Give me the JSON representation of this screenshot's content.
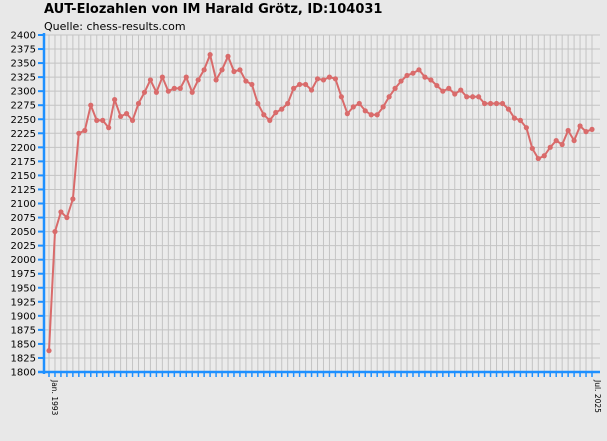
{
  "chart_data": {
    "type": "line",
    "title": "AUT-Elozahlen von IM Harald Grötz, ID:104031",
    "subtitle": "Quelle: chess-results.com",
    "xlabel": "",
    "ylabel": "",
    "ylim": [
      1800,
      2400
    ],
    "y_ticks": [
      1800,
      1825,
      1850,
      1875,
      1900,
      1925,
      1950,
      1975,
      2000,
      2025,
      2050,
      2075,
      2100,
      2125,
      2150,
      2175,
      2200,
      2225,
      2250,
      2275,
      2300,
      2325,
      2350,
      2375,
      2400
    ],
    "grid": true,
    "line_color": "#d96b6b",
    "axis_color": "#1e90ff",
    "x_first_label": "Jan. 1993",
    "x_last_label": "Jul. 2025",
    "series": [
      {
        "values": [
          1838,
          2050,
          2085,
          2075,
          2108,
          2225,
          2230,
          2275,
          2248,
          2248,
          2235,
          2285,
          2255,
          2260,
          2248,
          2278,
          2298,
          2320,
          2298,
          2325,
          2300,
          2305,
          2305,
          2325,
          2298,
          2320,
          2338,
          2365,
          2320,
          2338,
          2362,
          2335,
          2338,
          2318,
          2312,
          2278,
          2258,
          2248,
          2262,
          2268,
          2278,
          2305,
          2312,
          2312,
          2302,
          2322,
          2320,
          2325,
          2322,
          2290,
          2260,
          2272,
          2278,
          2265,
          2258,
          2258,
          2272,
          2290,
          2305,
          2318,
          2328,
          2332,
          2338,
          2325,
          2320,
          2310,
          2300,
          2305,
          2295,
          2302,
          2290,
          2290,
          2290,
          2278,
          2278,
          2278,
          2278,
          2268,
          2252,
          2248,
          2235,
          2198,
          2180,
          2185,
          2200,
          2212,
          2205,
          2230,
          2212,
          2238,
          2228,
          2232
        ]
      }
    ]
  }
}
